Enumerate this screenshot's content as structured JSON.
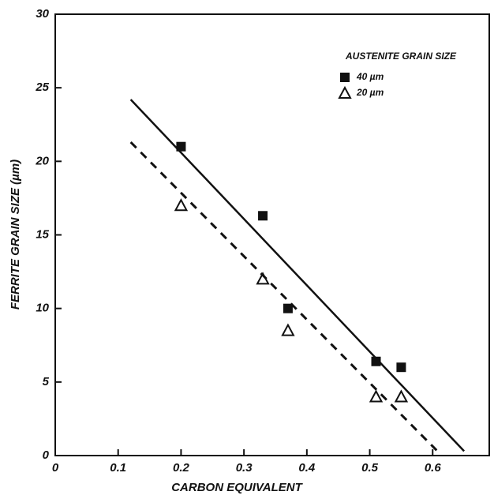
{
  "chart_data": {
    "type": "scatter",
    "x_label": "CARBON EQUIVALENT",
    "y_label": "FERRITE GRAIN SIZE (µm)",
    "legend_title": "AUSTENITE GRAIN SIZE",
    "legend": "upper right",
    "xlim": [
      0,
      0.69
    ],
    "ylim": [
      0,
      30
    ],
    "xticks": [
      0,
      0.1,
      0.2,
      0.3,
      0.4,
      0.5,
      0.6
    ],
    "yticks": [
      0,
      5,
      10,
      15,
      20,
      25,
      30
    ],
    "series": [
      {
        "name": "40 µm",
        "marker": "square",
        "color": "#111111",
        "x": [
          0.2,
          0.33,
          0.37,
          0.51,
          0.55
        ],
        "values": [
          21,
          16.3,
          10,
          6.4,
          6
        ]
      },
      {
        "name": "20 µm",
        "marker": "triangle",
        "color": "#111111",
        "x": [
          0.2,
          0.33,
          0.37,
          0.51,
          0.55
        ],
        "values": [
          17,
          12,
          8.5,
          4,
          4
        ]
      }
    ],
    "fit_lines": [
      {
        "x": [
          0.12,
          0.65
        ],
        "values": [
          24.2,
          0.3
        ],
        "dashed": false,
        "color": "#111111"
      },
      {
        "x": [
          0.12,
          0.61
        ],
        "values": [
          21.3,
          0.2
        ],
        "dashed": true,
        "color": "#111111"
      }
    ]
  }
}
